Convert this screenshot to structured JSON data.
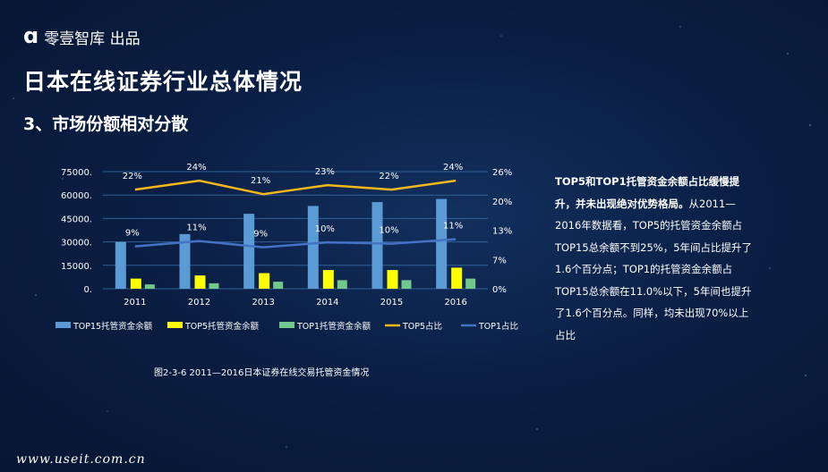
{
  "brand": {
    "logo_glyph": "ɑ",
    "name": "零壹智库 出品"
  },
  "page_title": "日本在线证券行业总体情况",
  "subtitle": "3、市场份额相对分散",
  "caption": "图2-3-6  2011—2016日本证券在线交易托管资金情况",
  "description": {
    "bold": "TOP5和TOP1托管资金余额占比缓慢提升，并未出现绝对优势格局。",
    "body": "从2011—2016年数据看，TOP5的托管资金余额占TOP15总余额不到25%，5年间占比提升了1.6个百分点；TOP1的托管资金余额占TOP15总余额在11.0%以下，5年间也提升了1.6个百分点。同样，均未出现70%以上占比"
  },
  "watermark": "www.useit.com.cn",
  "chart_data": {
    "type": "bar+line",
    "categories": [
      "2011",
      "2012",
      "2013",
      "2014",
      "2015",
      "2016"
    ],
    "ylim_left": [
      0,
      75000
    ],
    "yticks_left": [
      "0.",
      "15000.",
      "30000.",
      "45000.",
      "60000.",
      "75000."
    ],
    "ylim_right": [
      0,
      26
    ],
    "yticks_right": [
      "0%",
      "7%",
      "13%",
      "20%",
      "26%"
    ],
    "series": [
      {
        "name": "TOP15托管资金余额",
        "type": "bar",
        "axis": "left",
        "color": "#5b9bd5",
        "values": [
          30000,
          35000,
          48000,
          53000,
          55500,
          57500
        ]
      },
      {
        "name": "TOP5托管资金余额",
        "type": "bar",
        "axis": "left",
        "color": "#ffff00",
        "values": [
          6500,
          8500,
          10000,
          12000,
          12000,
          13500
        ]
      },
      {
        "name": "TOP1托管资金余额",
        "type": "bar",
        "axis": "left",
        "color": "#70c98a",
        "values": [
          2800,
          3500,
          4500,
          5500,
          5500,
          6500
        ]
      },
      {
        "name": "TOP5占比",
        "type": "line",
        "axis": "right",
        "color": "#f5b71a",
        "values": [
          22,
          24,
          21,
          23,
          22,
          24
        ],
        "labels": [
          "22%",
          "24%",
          "21%",
          "23%",
          "22%",
          "24%"
        ]
      },
      {
        "name": "TOP1占比",
        "type": "line",
        "axis": "right",
        "color": "#4472c4",
        "values": [
          9.4,
          10.6,
          9.2,
          10.3,
          10.0,
          11.0
        ],
        "labels": [
          "9%",
          "11%",
          "9%",
          "10%",
          "10%",
          "11%"
        ]
      }
    ],
    "grid": true,
    "legend": "bottom"
  }
}
